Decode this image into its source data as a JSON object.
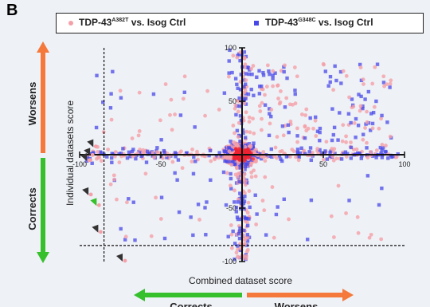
{
  "panel_label": "B",
  "legend": {
    "items": [
      {
        "prefix": "TDP-43",
        "superscript": "A382T",
        "suffix": " vs. Isog Ctrl",
        "color": "#f5a0a8",
        "marker": "circle"
      },
      {
        "prefix": "TDP-43",
        "superscript": "G348C",
        "suffix": " vs. Isog Ctrl",
        "color": "#4848e8",
        "marker": "square"
      }
    ]
  },
  "vertical_indicators": {
    "top": "Worsens",
    "bottom": "Corrects",
    "top_color": "#f4793a",
    "bottom_color": "#36c02c"
  },
  "horizontal_indicators": {
    "left": "Corrects",
    "right": "Worsens",
    "left_color": "#36c02c",
    "right_color": "#f4793a"
  },
  "chart_data": {
    "type": "scatter",
    "xlabel": "Combined dataset score",
    "ylabel": "Individual datasets score",
    "xlim": [
      -100,
      100
    ],
    "ylim": [
      -100,
      100
    ],
    "x_ticks": [
      "-100",
      "-50",
      "50",
      "100"
    ],
    "y_ticks": [
      "100",
      "50",
      "-50",
      "-100"
    ],
    "threshold_x": -85,
    "threshold_y": -85,
    "series": [
      {
        "name": "TDP-43A382T vs. Isog Ctrl",
        "color": "#f5a0a8",
        "marker": "circle",
        "count": 700
      },
      {
        "name": "TDP-43G348C vs. Isog Ctrl",
        "color": "#4848e8",
        "marker": "square",
        "count": 650
      }
    ],
    "highlighted": [
      {
        "x": -95,
        "y": 2,
        "color": "#333333"
      },
      {
        "x": -97,
        "y": -3,
        "color": "#333333"
      },
      {
        "x": -93,
        "y": 10,
        "color": "#333333"
      },
      {
        "x": -96,
        "y": -35,
        "color": "#333333"
      },
      {
        "x": -91,
        "y": -45,
        "color": "#36c02c"
      },
      {
        "x": -90,
        "y": -70,
        "color": "#333333"
      },
      {
        "x": -75,
        "y": -97,
        "color": "#333333"
      }
    ]
  }
}
